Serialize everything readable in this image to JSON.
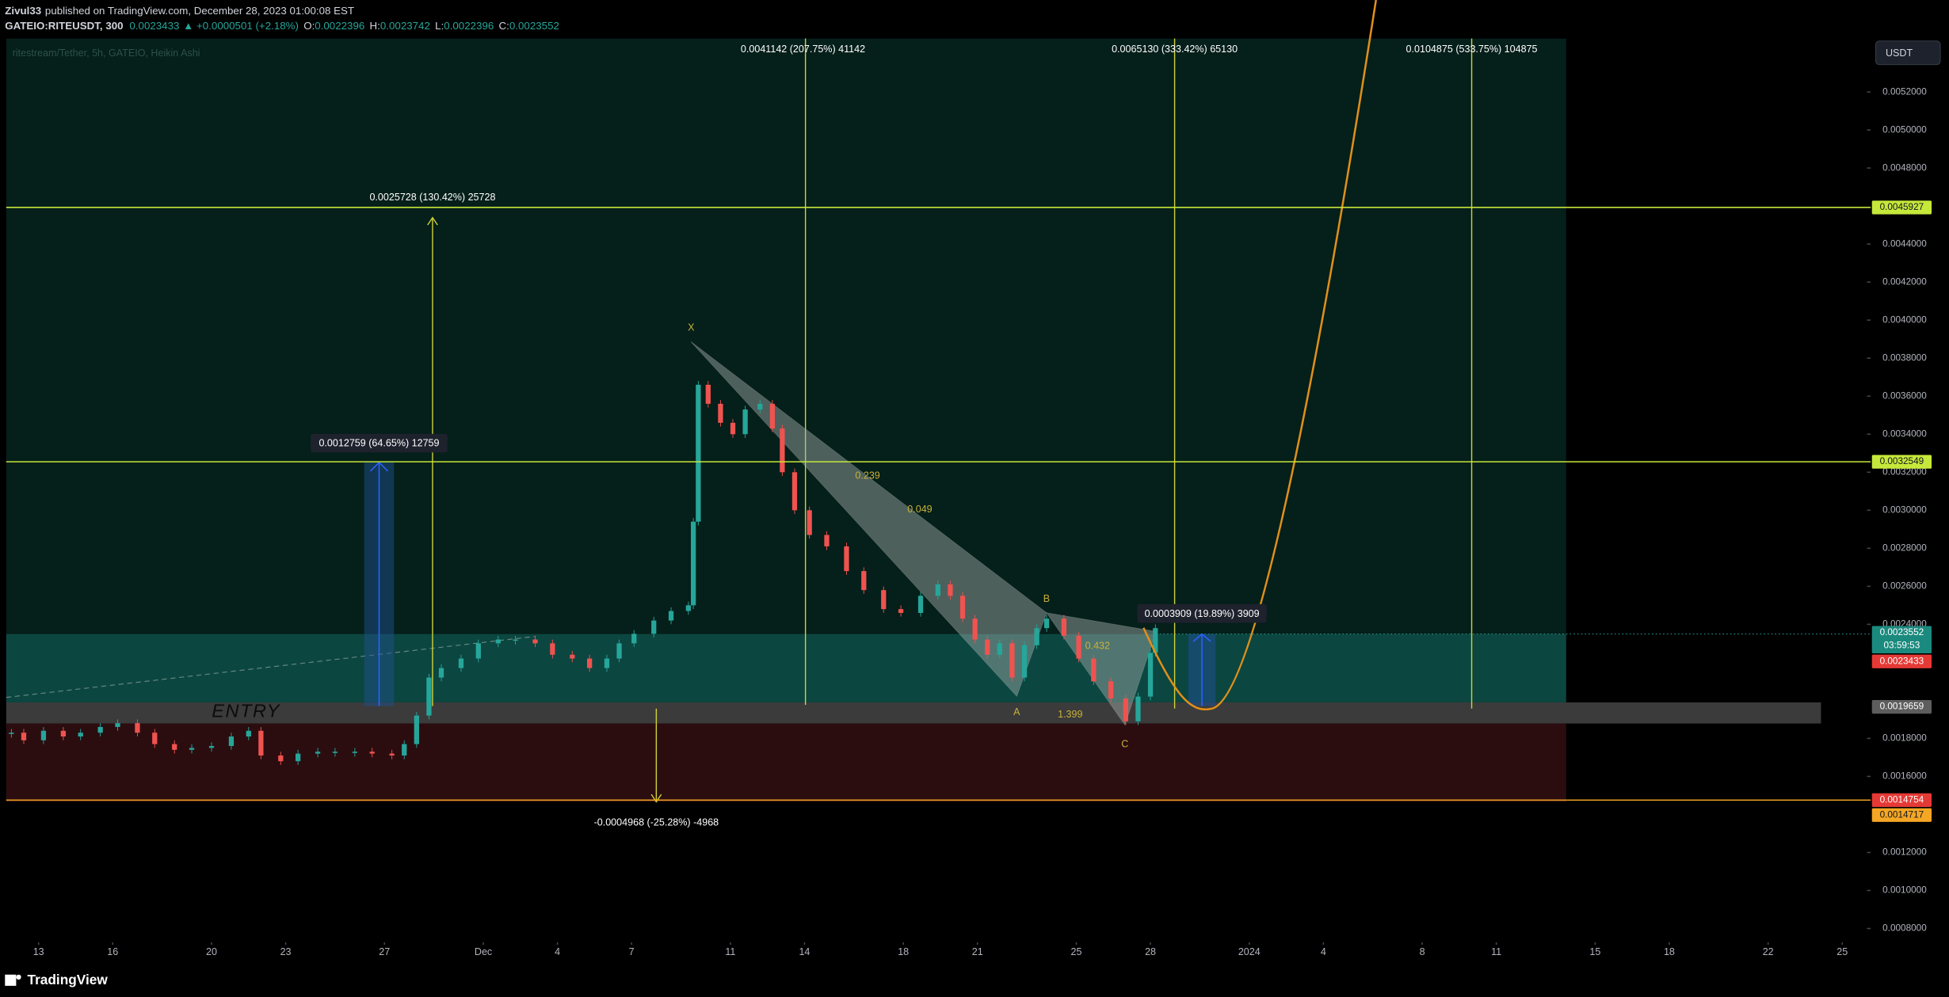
{
  "header": {
    "author": "Zivul33",
    "published": "published on TradingView.com, December 28, 2023 01:00:08 EST",
    "symbol": "GATEIO:RITEUSDT, 300",
    "last": "0.0023433",
    "change": "▲ +0.0000501 (+2.18%)",
    "ohlc": [
      {
        "label": "O:",
        "value": "0.0022396"
      },
      {
        "label": "H:",
        "value": "0.0023742"
      },
      {
        "label": "L:",
        "value": "0.0022396"
      },
      {
        "label": "C:",
        "value": "0.0023552"
      }
    ]
  },
  "currency_button": "USDT",
  "chart_data": {
    "type": "candlestick",
    "title": "ritestream/Tether, 5h, GATEIO, Heikin Ashi",
    "up_color": "#26a69a",
    "down_color": "#ef5350",
    "x": [
      -1.1,
      -0.6,
      0.2,
      1.0,
      1.7,
      2.5,
      3.2,
      4.0,
      4.7,
      5.5,
      6.2,
      7.0,
      7.8,
      8.5,
      9.0,
      9.8,
      10.5,
      11.3,
      12.0,
      12.8,
      13.5,
      14.3,
      14.8,
      15.3,
      15.8,
      16.3,
      17.1,
      17.8,
      18.6,
      19.3,
      20.1,
      20.8,
      21.6,
      22.3,
      23.0,
      23.5,
      24.1,
      24.9,
      25.6,
      26.3,
      26.5,
      26.7,
      27.1,
      27.6,
      28.1,
      28.6,
      29.2,
      29.7,
      30.1,
      30.6,
      31.2,
      31.9,
      32.7,
      33.4,
      34.2,
      34.9,
      35.7,
      36.4,
      36.9,
      37.4,
      37.9,
      38.4,
      38.9,
      39.4,
      39.9,
      40.4,
      40.8,
      41.5,
      42.1,
      42.7,
      43.4,
      44.0,
      44.5,
      45.0,
      45.2
    ],
    "values": [
      0.00183,
      0.00179,
      0.00184,
      0.00181,
      0.00183,
      0.00186,
      0.00188,
      0.00183,
      0.00177,
      0.00174,
      0.00175,
      0.00176,
      0.00181,
      0.00184,
      0.00171,
      0.00168,
      0.00172,
      0.00173,
      0.00173,
      0.00173,
      0.00172,
      0.00171,
      0.00177,
      0.00192,
      0.00212,
      0.00217,
      0.00222,
      0.0023,
      0.00232,
      0.00232,
      0.0023,
      0.00224,
      0.00222,
      0.00217,
      0.00222,
      0.0023,
      0.00235,
      0.00242,
      0.00247,
      0.0025,
      0.00294,
      0.00366,
      0.00356,
      0.00346,
      0.0034,
      0.00353,
      0.00356,
      0.00343,
      0.0032,
      0.003,
      0.00287,
      0.00281,
      0.00268,
      0.00258,
      0.00248,
      0.00246,
      0.00255,
      0.00261,
      0.00255,
      0.00243,
      0.00232,
      0.00224,
      0.0023,
      0.00212,
      0.00229,
      0.00238,
      0.00243,
      0.00234,
      0.00222,
      0.0021,
      0.00201,
      0.00189,
      0.00202,
      0.00225,
      0.00238
    ],
    "xlim": [
      -1.31,
      73.9
    ],
    "ylim": [
      0.000734,
      0.005468
    ],
    "xticks": [
      {
        "value": 0,
        "label": "13"
      },
      {
        "value": 3,
        "label": "16"
      },
      {
        "value": 7,
        "label": "20"
      },
      {
        "value": 10,
        "label": "23"
      },
      {
        "value": 14,
        "label": "27"
      },
      {
        "value": 18,
        "label": "Dec"
      },
      {
        "value": 21,
        "label": "4"
      },
      {
        "value": 24,
        "label": "7"
      },
      {
        "value": 28,
        "label": "11"
      },
      {
        "value": 31,
        "label": "14"
      },
      {
        "value": 35,
        "label": "18"
      },
      {
        "value": 38,
        "label": "21"
      },
      {
        "value": 42,
        "label": "25"
      },
      {
        "value": 45,
        "label": "28"
      },
      {
        "value": 49,
        "label": "2024"
      },
      {
        "value": 52,
        "label": "4"
      },
      {
        "value": 56,
        "label": "8"
      },
      {
        "value": 59,
        "label": "11"
      },
      {
        "value": 63,
        "label": "15"
      },
      {
        "value": 66,
        "label": "18"
      },
      {
        "value": 70,
        "label": "22"
      },
      {
        "value": 73,
        "label": "25"
      }
    ],
    "yticks": [
      {
        "value": 0.0052,
        "label": "0.0052000"
      },
      {
        "value": 0.005,
        "label": "0.0050000"
      },
      {
        "value": 0.0048,
        "label": "0.0048000"
      },
      {
        "value": 0.0044,
        "label": "0.0044000"
      },
      {
        "value": 0.0042,
        "label": "0.0042000"
      },
      {
        "value": 0.004,
        "label": "0.0040000"
      },
      {
        "value": 0.0038,
        "label": "0.0038000"
      },
      {
        "value": 0.0036,
        "label": "0.0036000"
      },
      {
        "value": 0.0034,
        "label": "0.0034000"
      },
      {
        "value": 0.0032,
        "label": "0.0032000"
      },
      {
        "value": 0.003,
        "label": "0.0030000"
      },
      {
        "value": 0.0028,
        "label": "0.0028000"
      },
      {
        "value": 0.0026,
        "label": "0.0026000"
      },
      {
        "value": 0.0024,
        "label": "0.0024000"
      },
      {
        "value": 0.0018,
        "label": "0.0018000"
      },
      {
        "value": 0.0016,
        "label": "0.0016000"
      },
      {
        "value": 0.0012,
        "label": "0.0012000"
      },
      {
        "value": 0.001,
        "label": "0.0010000"
      },
      {
        "value": 0.0008,
        "label": "0.0008000"
      }
    ],
    "price_labels": [
      {
        "value": 0.0045927,
        "color": "#c6e83a",
        "line": "#c6e83a"
      },
      {
        "value": 0.0032549,
        "color": "#c6e83a",
        "line": "#c6e83a"
      },
      {
        "value": 0.0023552,
        "color": "#1b8a7e",
        "countdown": "03:59:53"
      },
      {
        "value": 0.0023433,
        "color": "#e53935"
      },
      {
        "value": 0.0019659,
        "color": "#5d5d5d"
      },
      {
        "value": 0.0014754,
        "color": "#e53935",
        "line": "#f5a623"
      },
      {
        "value": 0.0014717,
        "color": "#f5a623"
      }
    ]
  },
  "annotations": [
    "0.0041142 (207.75%) 41142",
    "0.0065130 (333.42%) 65130",
    "0.0104875 (533.75%) 104875",
    "0.0025728 (130.42%) 25728",
    "0.0012759 (64.65%) 12759",
    "0.0003909 (19.89%) 3909",
    "-0.0004968 (-25.28%) -4968"
  ],
  "pattern_points": [
    "X",
    "A",
    "B",
    "C"
  ],
  "ratios": [
    "0.239",
    "0.049",
    "0.432",
    "1.399"
  ],
  "entry_label": "ENTRY",
  "footer": "TradingView"
}
